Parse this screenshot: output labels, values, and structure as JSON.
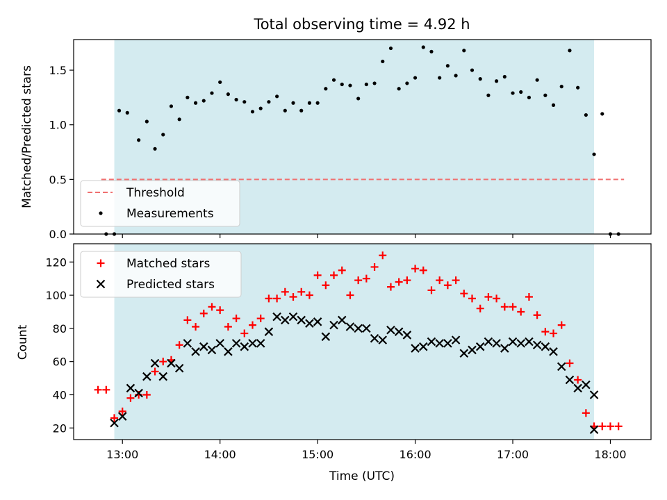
{
  "chart_data": [
    {
      "type": "scatter",
      "title": "Total observing time = 4.92 h",
      "xlabel": "",
      "ylabel": "Matched/Predicted stars",
      "ylim": [
        0,
        1.78
      ],
      "yticks": [
        "0.0",
        "0.5",
        "1.0",
        "1.5"
      ],
      "shaded_region": {
        "start": "12:55",
        "end": "17:50",
        "color": "#d4ebf0"
      },
      "threshold": {
        "name": "Threshold",
        "value": 0.5,
        "color": "#f07070",
        "style": "dashed"
      },
      "legend": {
        "placement": "lower-left",
        "entries": [
          "Threshold",
          "Measurements"
        ]
      },
      "series": [
        {
          "name": "Measurements",
          "color": "#000000",
          "marker": "dot",
          "x": [
            "12:50",
            "12:55",
            "12:58",
            "13:03",
            "13:10",
            "13:15",
            "13:20",
            "13:25",
            "13:30",
            "13:35",
            "13:40",
            "13:45",
            "13:50",
            "13:55",
            "14:00",
            "14:05",
            "14:10",
            "14:15",
            "14:20",
            "14:25",
            "14:30",
            "14:35",
            "14:40",
            "14:45",
            "14:50",
            "14:55",
            "15:00",
            "15:05",
            "15:10",
            "15:15",
            "15:20",
            "15:25",
            "15:30",
            "15:35",
            "15:40",
            "15:45",
            "15:50",
            "15:55",
            "16:00",
            "16:05",
            "16:10",
            "16:15",
            "16:20",
            "16:25",
            "16:30",
            "16:35",
            "16:40",
            "16:45",
            "16:50",
            "16:55",
            "17:00",
            "17:05",
            "17:10",
            "17:15",
            "17:20",
            "17:25",
            "17:30",
            "17:35",
            "17:40",
            "17:45",
            "17:50",
            "17:55",
            "18:00",
            "18:05"
          ],
          "y": [
            0.0,
            0.0,
            1.13,
            1.11,
            0.86,
            1.03,
            0.78,
            0.91,
            1.17,
            1.05,
            1.25,
            1.2,
            1.22,
            1.29,
            1.39,
            1.28,
            1.23,
            1.21,
            1.12,
            1.15,
            1.21,
            1.26,
            1.13,
            1.2,
            1.13,
            1.2,
            1.2,
            1.33,
            1.41,
            1.37,
            1.36,
            1.24,
            1.37,
            1.38,
            1.58,
            1.7,
            1.33,
            1.38,
            1.43,
            1.71,
            1.67,
            1.43,
            1.54,
            1.45,
            1.68,
            1.5,
            1.42,
            1.27,
            1.4,
            1.44,
            1.29,
            1.3,
            1.25,
            1.41,
            1.27,
            1.18,
            1.35,
            1.68,
            1.34,
            1.09,
            0.73,
            1.1,
            0.0,
            0.0
          ]
        }
      ]
    },
    {
      "type": "scatter",
      "title": "",
      "xlabel": "Time (UTC)",
      "ylabel": "Count",
      "ylim": [
        13,
        131
      ],
      "xlim": [
        "12:30",
        "18:25"
      ],
      "xticks": [
        "13:00",
        "14:00",
        "15:00",
        "16:00",
        "17:00",
        "18:00"
      ],
      "yticks": [
        "20",
        "40",
        "60",
        "80",
        "100",
        "120"
      ],
      "shaded_region": {
        "start": "12:55",
        "end": "17:50",
        "color": "#d4ebf0"
      },
      "legend": {
        "placement": "upper-left",
        "entries": [
          "Matched stars",
          "Predicted stars"
        ]
      },
      "series": [
        {
          "name": "Matched stars",
          "color": "#ff0000",
          "marker": "plus",
          "x": [
            "12:45",
            "12:50",
            "12:55",
            "13:00",
            "13:05",
            "13:10",
            "13:15",
            "13:20",
            "13:25",
            "13:30",
            "13:35",
            "13:40",
            "13:45",
            "13:50",
            "13:55",
            "14:00",
            "14:05",
            "14:10",
            "14:15",
            "14:20",
            "14:25",
            "14:30",
            "14:35",
            "14:40",
            "14:45",
            "14:50",
            "14:55",
            "15:00",
            "15:05",
            "15:10",
            "15:15",
            "15:20",
            "15:25",
            "15:30",
            "15:35",
            "15:40",
            "15:45",
            "15:50",
            "15:55",
            "16:00",
            "16:05",
            "16:10",
            "16:15",
            "16:20",
            "16:25",
            "16:30",
            "16:35",
            "16:40",
            "16:45",
            "16:50",
            "16:55",
            "17:00",
            "17:05",
            "17:10",
            "17:15",
            "17:20",
            "17:25",
            "17:30",
            "17:35",
            "17:40",
            "17:45",
            "17:50",
            "17:55",
            "18:00",
            "18:05"
          ],
          "y": [
            43,
            43,
            26,
            30,
            38,
            40,
            40,
            54,
            60,
            61,
            70,
            85,
            81,
            89,
            93,
            91,
            81,
            86,
            77,
            82,
            86,
            98,
            98,
            102,
            99,
            102,
            100,
            112,
            106,
            112,
            115,
            100,
            109,
            110,
            117,
            124,
            105,
            108,
            109,
            116,
            115,
            103,
            109,
            106,
            109,
            101,
            98,
            92,
            99,
            98,
            93,
            93,
            90,
            99,
            88,
            78,
            77,
            82,
            59,
            49,
            29,
            21,
            21,
            21,
            21
          ]
        },
        {
          "name": "Predicted stars",
          "color": "#000000",
          "marker": "x",
          "x": [
            "12:55",
            "13:00",
            "13:05",
            "13:10",
            "13:15",
            "13:20",
            "13:25",
            "13:30",
            "13:35",
            "13:40",
            "13:45",
            "13:50",
            "13:55",
            "14:00",
            "14:05",
            "14:10",
            "14:15",
            "14:20",
            "14:25",
            "14:30",
            "14:35",
            "14:40",
            "14:45",
            "14:50",
            "14:55",
            "15:00",
            "15:05",
            "15:10",
            "15:15",
            "15:20",
            "15:25",
            "15:30",
            "15:35",
            "15:40",
            "15:45",
            "15:50",
            "15:55",
            "16:00",
            "16:05",
            "16:10",
            "16:15",
            "16:20",
            "16:25",
            "16:30",
            "16:35",
            "16:40",
            "16:45",
            "16:50",
            "16:55",
            "17:00",
            "17:05",
            "17:10",
            "17:15",
            "17:20",
            "17:25",
            "17:30",
            "17:35",
            "17:40",
            "17:45",
            "17:50"
          ],
          "y": [
            23,
            27,
            44,
            41,
            51,
            59,
            51,
            59,
            56,
            71,
            66,
            69,
            67,
            71,
            66,
            71,
            69,
            71,
            71,
            78,
            87,
            85,
            87,
            85,
            83,
            84,
            75,
            82,
            85,
            81,
            80,
            80,
            74,
            73,
            79,
            78,
            76,
            68,
            69,
            72,
            71,
            71,
            73,
            65,
            67,
            69,
            72,
            71,
            68,
            72,
            71,
            72,
            70,
            69,
            66,
            57,
            49,
            44,
            46,
            40
          ]
        },
        {
          "name": "",
          "color": "#000000",
          "marker": "x",
          "x": [
            "17:50"
          ],
          "y": [
            19
          ]
        }
      ]
    }
  ]
}
